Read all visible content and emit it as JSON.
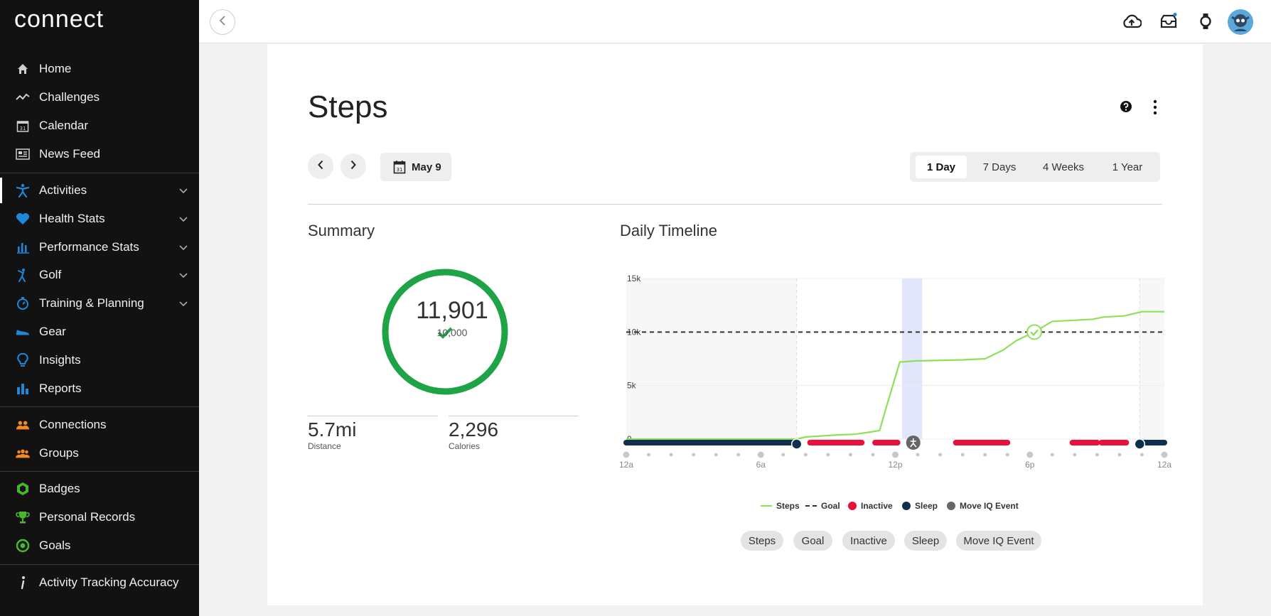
{
  "app": {
    "logo": "connect"
  },
  "sidebar": {
    "items": [
      {
        "label": "Home"
      },
      {
        "label": "Challenges"
      },
      {
        "label": "Calendar"
      },
      {
        "label": "News Feed"
      },
      {
        "label": "Activities"
      },
      {
        "label": "Health Stats"
      },
      {
        "label": "Performance Stats"
      },
      {
        "label": "Golf"
      },
      {
        "label": "Training & Planning"
      },
      {
        "label": "Gear"
      },
      {
        "label": "Insights"
      },
      {
        "label": "Reports"
      },
      {
        "label": "Connections"
      },
      {
        "label": "Groups"
      },
      {
        "label": "Badges"
      },
      {
        "label": "Personal Records"
      },
      {
        "label": "Goals"
      },
      {
        "label": "Activity Tracking Accuracy"
      }
    ],
    "calendar_icon_text": "31"
  },
  "page": {
    "title": "Steps",
    "date_label": "May 9",
    "range_tabs": [
      "1 Day",
      "7 Days",
      "4 Weeks",
      "1 Year"
    ],
    "selected_range": "1 Day"
  },
  "summary": {
    "title": "Summary",
    "steps": "11,901",
    "goal": "10,000",
    "goal_progress": 1.0,
    "distance_value": "5.7mi",
    "distance_label": "Distance",
    "calories_value": "2,296",
    "calories_label": "Calories"
  },
  "timeline": {
    "title": "Daily Timeline",
    "legend": [
      "Steps",
      "Goal",
      "Inactive",
      "Sleep",
      "Move IQ Event"
    ],
    "toggles": [
      "Steps",
      "Goal",
      "Inactive",
      "Sleep",
      "Move IQ Event"
    ]
  },
  "colors": {
    "steps_line": "#8ee05a",
    "goal_line": "#333333",
    "inactive": "#e8113b",
    "sleep": "#0e2f4d",
    "move_iq": "#666666",
    "ring": "#1ea446",
    "accent_blue": "#1e88d8",
    "accent_orange": "#f08a1c",
    "accent_green": "#4ab82b"
  },
  "chart_data": {
    "type": "line",
    "title": "",
    "xlabel": "",
    "ylabel": "",
    "x_tick_labels": [
      "12a",
      "6a",
      "12p",
      "6p",
      "12a"
    ],
    "y_tick_labels": [
      "0",
      "5k",
      "10k",
      "15k"
    ],
    "xlim": [
      0,
      24
    ],
    "ylim": [
      0,
      15000
    ],
    "goal": 10000,
    "series": [
      {
        "name": "Steps",
        "x": [
          0,
          7.6,
          8.0,
          9.5,
          10.2,
          11.0,
          11.3,
          11.6,
          12.2,
          12.9,
          15.0,
          16.0,
          16.8,
          17.4,
          18.2,
          19.0,
          20.0,
          20.8,
          21.3,
          22.2,
          23.0,
          24.0
        ],
        "y": [
          0,
          0,
          200,
          400,
          450,
          700,
          800,
          3000,
          7200,
          7300,
          7400,
          7500,
          8300,
          9200,
          10000,
          11000,
          11100,
          11200,
          11400,
          11500,
          11901,
          11901
        ]
      }
    ],
    "sleep_intervals": [
      [
        0,
        7.6
      ],
      [
        22.9,
        24
      ]
    ],
    "inactive_intervals": [
      [
        8.2,
        10.5
      ],
      [
        11.1,
        12.1
      ],
      [
        14.7,
        17.0
      ],
      [
        19.9,
        21.0
      ],
      [
        21.2,
        22.3
      ]
    ],
    "move_iq_events": [
      12.8
    ],
    "activity_highlight": [
      12.3,
      13.2
    ],
    "grid": true,
    "legend_position": "bottom"
  }
}
